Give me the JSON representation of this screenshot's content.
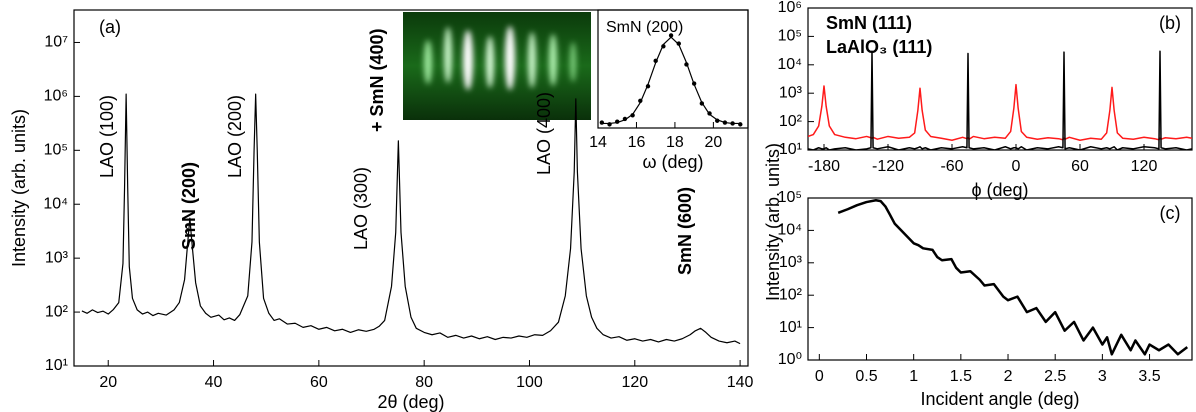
{
  "chart_data": [
    {
      "type": "line",
      "panel_label": "(a)",
      "x_label": "2θ (deg)",
      "y_label": "Intensity (arb. units)",
      "log_y": true,
      "xlim": [
        13.5,
        141.5
      ],
      "ylim": [
        10,
        40000000
      ],
      "xticks": [
        20,
        40,
        60,
        80,
        100,
        120,
        140
      ],
      "yticks": [
        {
          "value": 10,
          "label": "10¹"
        },
        {
          "value": 100,
          "label": "10²"
        },
        {
          "value": 1000,
          "label": "10³"
        },
        {
          "value": 10000,
          "label": "10⁴"
        },
        {
          "value": 100000,
          "label": "10⁵"
        },
        {
          "value": 1000000,
          "label": "10⁶"
        },
        {
          "value": 10000000,
          "label": "10⁷"
        }
      ],
      "x": [
        15,
        16,
        17,
        18,
        19,
        20,
        21,
        22,
        22.8,
        23.1,
        23.4,
        23.7,
        24,
        24.6,
        25.5,
        26.5,
        27.5,
        28.5,
        29.5,
        31,
        32.5,
        33.5,
        34.5,
        35,
        35.5,
        36,
        36.6,
        37.5,
        38.5,
        39.5,
        41,
        42,
        43,
        44,
        45,
        46.5,
        47.3,
        47.7,
        48,
        48.3,
        48.7,
        49.5,
        50.5,
        51.5,
        52.5,
        54,
        55.5,
        57,
        58.5,
        60,
        61.5,
        63,
        64.5,
        66,
        67.5,
        69,
        70.5,
        71.5,
        72.5,
        73.8,
        74.6,
        75.1,
        75.6,
        76.4,
        77.5,
        78.5,
        80,
        81.5,
        83,
        84.5,
        86,
        87.5,
        89,
        90.5,
        92,
        93.5,
        95,
        96.5,
        98,
        99.5,
        101,
        102.5,
        104,
        105.5,
        106.8,
        107.8,
        108.5,
        108.8,
        109.1,
        109.8,
        110.8,
        111.8,
        112.8,
        114,
        115.5,
        117,
        118.5,
        120,
        121.5,
        123,
        124.5,
        126,
        127.5,
        129,
        130.5,
        131.5,
        132.5,
        133.5,
        134.5,
        136,
        137.5,
        139,
        140
      ],
      "series": [
        {
          "color": "#000000",
          "style": "line",
          "values": [
            105,
            95,
            110,
            98,
            104,
            92,
            112,
            150,
            800,
            20000,
            1100000,
            20000,
            700,
            180,
            110,
            92,
            100,
            86,
            95,
            88,
            110,
            150,
            400,
            1500,
            5500,
            1500,
            350,
            130,
            95,
            80,
            88,
            72,
            78,
            70,
            90,
            200,
            2000,
            100000,
            1100000,
            100000,
            2000,
            180,
            95,
            70,
            75,
            60,
            62,
            52,
            56,
            48,
            52,
            45,
            48,
            42,
            47,
            44,
            48,
            55,
            70,
            300,
            3000,
            150000,
            3000,
            300,
            80,
            50,
            42,
            38,
            41,
            34,
            37,
            33,
            36,
            32,
            35,
            31,
            34,
            33,
            36,
            34,
            38,
            37,
            45,
            65,
            200,
            1500,
            40000,
            900000,
            40000,
            1500,
            200,
            80,
            50,
            38,
            33,
            35,
            30,
            32,
            29,
            31,
            28,
            31,
            29,
            32,
            38,
            45,
            50,
            42,
            34,
            29,
            27,
            29,
            26
          ]
        }
      ],
      "annotations": [
        {
          "text": "LAO (100)",
          "color": "#000000",
          "bold": false
        },
        {
          "text": "SmN (200)",
          "color": "#ff1a1a",
          "bold": true
        },
        {
          "text": "LAO (200)",
          "color": "#000000",
          "bold": false
        },
        {
          "text": "LAO (300)",
          "color": "#000000",
          "bold": false
        },
        {
          "text": "+ SmN (400)",
          "color": "#ff1a1a",
          "bold": true
        },
        {
          "text": "LAO (400)",
          "color": "#000000",
          "bold": false
        },
        {
          "text": "SmN (600)",
          "color": "#ff1a1a",
          "bold": true
        }
      ]
    },
    {
      "type": "line",
      "title": "SmN (200)",
      "x_label": "ω (deg)",
      "log_y": false,
      "xlim": [
        14,
        21.8
      ],
      "ylim": [
        0,
        1.3
      ],
      "xticks": [
        14,
        16,
        18,
        20
      ],
      "x": [
        14.2,
        14.6,
        15.0,
        15.4,
        15.8,
        16.2,
        16.6,
        17.0,
        17.4,
        17.8,
        18.2,
        18.6,
        19.0,
        19.4,
        19.8,
        20.2,
        20.6,
        21.0,
        21.4
      ],
      "series": [
        {
          "color": "#000000",
          "style": "markers",
          "values": [
            0.06,
            0.04,
            0.07,
            0.1,
            0.14,
            0.3,
            0.46,
            0.74,
            0.9,
            1.02,
            0.93,
            0.7,
            0.49,
            0.27,
            0.16,
            0.08,
            0.06,
            0.05,
            0.04
          ]
        },
        {
          "color": "#000000",
          "style": "line",
          "values": [
            0.05,
            0.05,
            0.06,
            0.09,
            0.15,
            0.28,
            0.48,
            0.72,
            0.92,
            1.0,
            0.92,
            0.72,
            0.48,
            0.28,
            0.15,
            0.09,
            0.06,
            0.05,
            0.05
          ]
        }
      ]
    },
    {
      "type": "line",
      "panel_label": "(b)",
      "x_label": "ϕ (deg)",
      "log_y": true,
      "xlim": [
        -195,
        165
      ],
      "ylim": [
        10,
        1000000
      ],
      "xticks": [
        -180,
        -120,
        -60,
        0,
        60,
        120
      ],
      "yticks": [
        {
          "value": 10,
          "label": "10¹"
        },
        {
          "value": 100,
          "label": "10²"
        },
        {
          "value": 1000,
          "label": "10³"
        },
        {
          "value": 10000,
          "label": "10⁴"
        },
        {
          "value": 100000,
          "label": "10⁵"
        },
        {
          "value": 1000000,
          "label": "10⁶"
        }
      ],
      "x": [
        -195,
        -190,
        -185,
        -182,
        -180,
        -178,
        -175,
        -170,
        -160,
        -150,
        -140,
        -136,
        -135,
        -134,
        -130,
        -120,
        -110,
        -100,
        -95,
        -92,
        -90,
        -88,
        -85,
        -80,
        -70,
        -60,
        -50,
        -46,
        -45,
        -44,
        -40,
        -30,
        -20,
        -10,
        -5,
        -2,
        0,
        2,
        5,
        10,
        20,
        30,
        40,
        44,
        45,
        46,
        50,
        60,
        70,
        80,
        85,
        88,
        90,
        92,
        95,
        100,
        110,
        120,
        130,
        134,
        135,
        136,
        140,
        150,
        160,
        165
      ],
      "series": [
        {
          "name": "SmN (111)",
          "color": "#ff1a1a",
          "style": "line",
          "values": [
            30,
            35,
            70,
            350,
            1800,
            350,
            70,
            35,
            28,
            25,
            30,
            27,
            26,
            28,
            24,
            30,
            26,
            28,
            40,
            250,
            1500,
            250,
            50,
            30,
            26,
            22,
            28,
            25,
            27,
            24,
            30,
            25,
            28,
            26,
            45,
            300,
            2000,
            300,
            45,
            28,
            24,
            27,
            25,
            23,
            26,
            24,
            28,
            22,
            26,
            24,
            40,
            250,
            1600,
            250,
            40,
            26,
            24,
            28,
            25,
            23,
            26,
            24,
            27,
            25,
            28,
            26
          ]
        },
        {
          "name": "LaAlO₃ (111)",
          "color": "#000000",
          "style": "line",
          "values": [
            11,
            10,
            12,
            11,
            11,
            12,
            10,
            11,
            12,
            10,
            11,
            12,
            30000,
            12,
            11,
            13,
            10,
            12,
            11,
            12,
            13,
            11,
            12,
            10,
            12,
            11,
            13,
            12,
            25000,
            12,
            11,
            12,
            10,
            13,
            11,
            12,
            12,
            11,
            13,
            10,
            12,
            11,
            13,
            12,
            28000,
            11,
            12,
            10,
            13,
            11,
            12,
            11,
            12,
            13,
            10,
            12,
            11,
            13,
            12,
            11,
            30000,
            12,
            11,
            12,
            10,
            11
          ]
        }
      ]
    },
    {
      "type": "line",
      "panel_label": "(c)",
      "x_label": "Incident angle (deg)",
      "y_label": "Intensity (arb. units)",
      "log_y": true,
      "xlim": [
        -0.12,
        3.95
      ],
      "ylim": [
        1,
        100000
      ],
      "xticks": [
        0,
        0.5,
        1,
        1.5,
        2,
        2.5,
        3,
        3.5
      ],
      "yticks": [
        {
          "value": 1,
          "label": "10⁰"
        },
        {
          "value": 10,
          "label": "10¹"
        },
        {
          "value": 100,
          "label": "10²"
        },
        {
          "value": 1000,
          "label": "10³"
        },
        {
          "value": 10000,
          "label": "10⁴"
        },
        {
          "value": 100000,
          "label": "10⁵"
        }
      ],
      "x": [
        0.2,
        0.3,
        0.4,
        0.5,
        0.6,
        0.65,
        0.7,
        0.75,
        0.8,
        0.9,
        1.0,
        1.05,
        1.1,
        1.2,
        1.25,
        1.3,
        1.4,
        1.45,
        1.5,
        1.6,
        1.7,
        1.75,
        1.85,
        1.95,
        2.0,
        2.1,
        2.2,
        2.3,
        2.4,
        2.5,
        2.6,
        2.7,
        2.8,
        2.9,
        3.0,
        3.05,
        3.1,
        3.2,
        3.3,
        3.35,
        3.45,
        3.5,
        3.6,
        3.7,
        3.8,
        3.9
      ],
      "series": [
        {
          "color": "#000000",
          "style": "line",
          "values": [
            35000,
            45000,
            60000,
            75000,
            85000,
            80000,
            55000,
            30000,
            16000,
            8000,
            4000,
            3500,
            2800,
            2500,
            1500,
            1200,
            1300,
            700,
            500,
            550,
            300,
            200,
            220,
            90,
            70,
            90,
            30,
            40,
            15,
            30,
            8,
            15,
            4,
            10,
            3,
            5,
            1.5,
            6,
            2,
            4,
            1.5,
            3,
            2,
            3,
            1.5,
            2.5
          ]
        }
      ]
    }
  ]
}
